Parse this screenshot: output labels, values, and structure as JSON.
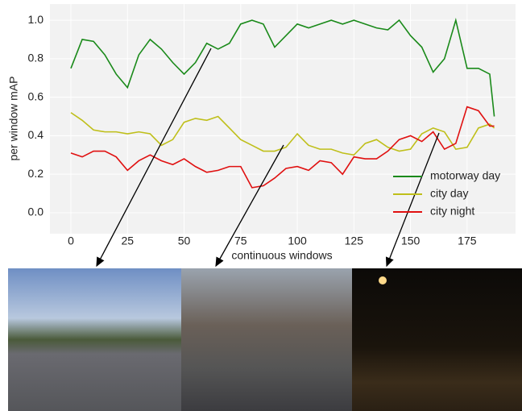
{
  "chart_data": {
    "type": "line",
    "xlabel": "continuous windows",
    "ylabel": "per window mAP",
    "x": [
      0,
      5,
      10,
      15,
      20,
      25,
      30,
      35,
      40,
      45,
      50,
      55,
      60,
      65,
      70,
      75,
      80,
      85,
      90,
      95,
      100,
      105,
      110,
      115,
      120,
      125,
      130,
      135,
      140,
      145,
      150,
      155,
      160,
      165,
      170,
      175,
      180,
      185,
      187
    ],
    "series": [
      {
        "name": "motorway day",
        "color": "#1a8a1a",
        "values": [
          0.75,
          0.9,
          0.89,
          0.82,
          0.72,
          0.65,
          0.82,
          0.9,
          0.85,
          0.78,
          0.72,
          0.78,
          0.88,
          0.85,
          0.88,
          0.98,
          1.0,
          0.98,
          0.86,
          0.92,
          0.98,
          0.96,
          0.98,
          1.0,
          0.98,
          1.0,
          0.98,
          0.96,
          0.95,
          1.0,
          0.92,
          0.86,
          0.73,
          0.8,
          1.0,
          0.75,
          0.75,
          0.72,
          0.5
        ]
      },
      {
        "name": "city day",
        "color": "#bfbf1a",
        "values": [
          0.52,
          0.48,
          0.43,
          0.42,
          0.42,
          0.41,
          0.42,
          0.41,
          0.35,
          0.38,
          0.47,
          0.49,
          0.48,
          0.5,
          0.44,
          0.38,
          0.35,
          0.32,
          0.32,
          0.34,
          0.41,
          0.35,
          0.33,
          0.33,
          0.31,
          0.3,
          0.36,
          0.38,
          0.34,
          0.32,
          0.33,
          0.41,
          0.44,
          0.42,
          0.33,
          0.34,
          0.44,
          0.46,
          0.44
        ]
      },
      {
        "name": "city night",
        "color": "#e01010",
        "values": [
          0.31,
          0.29,
          0.32,
          0.32,
          0.29,
          0.22,
          0.27,
          0.3,
          0.27,
          0.25,
          0.28,
          0.24,
          0.21,
          0.22,
          0.24,
          0.24,
          0.13,
          0.14,
          0.18,
          0.23,
          0.24,
          0.22,
          0.27,
          0.26,
          0.2,
          0.29,
          0.28,
          0.28,
          0.32,
          0.38,
          0.4,
          0.37,
          0.42,
          0.33,
          0.36,
          0.55,
          0.53,
          0.45,
          0.45
        ]
      }
    ],
    "xlim": [
      -9.25,
      196.4
    ],
    "ylim": [
      -0.109,
      1.084
    ],
    "xticks": [
      0,
      25,
      50,
      75,
      100,
      125,
      150,
      175
    ],
    "yticks": [
      {
        "value": 0,
        "label": "0.0"
      },
      0.2,
      0.4,
      0.6,
      0.8,
      {
        "value": 1,
        "label": "1.0"
      }
    ],
    "grid": true,
    "legend": "right"
  }
}
